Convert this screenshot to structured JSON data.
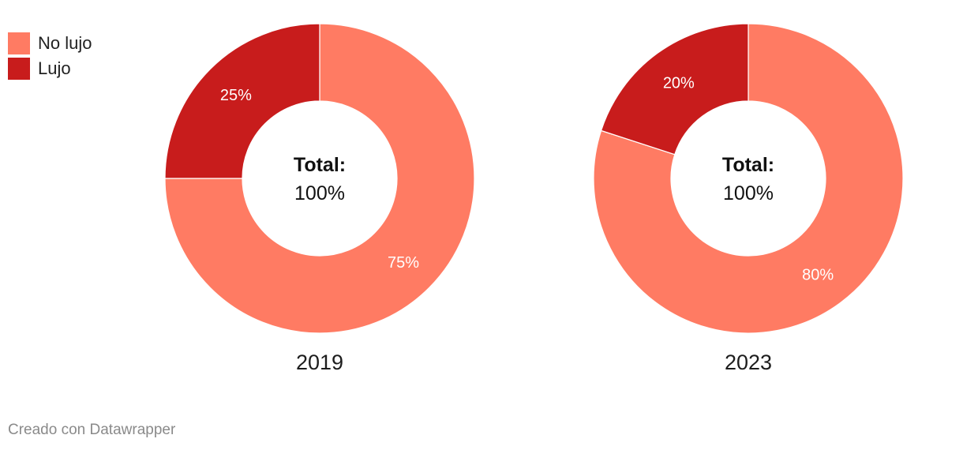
{
  "legend": [
    {
      "label": "No lujo",
      "color": "#ff7b63"
    },
    {
      "label": "Lujo",
      "color": "#c81c1c"
    }
  ],
  "chart_data": [
    {
      "type": "pie",
      "subtype": "donut",
      "label": "2019",
      "center_label_bold": "Total:",
      "center_label_value": "100%",
      "slices": [
        {
          "name": "No lujo",
          "value": 75,
          "label": "75%",
          "color": "#ff7b63"
        },
        {
          "name": "Lujo",
          "value": 25,
          "label": "25%",
          "color": "#c81c1c"
        }
      ]
    },
    {
      "type": "pie",
      "subtype": "donut",
      "label": "2023",
      "center_label_bold": "Total:",
      "center_label_value": "100%",
      "slices": [
        {
          "name": "No lujo",
          "value": 80,
          "label": "80%",
          "color": "#ff7b63"
        },
        {
          "name": "Lujo",
          "value": 20,
          "label": "20%",
          "color": "#c81c1c"
        }
      ]
    }
  ],
  "footer": {
    "credit": "Creado con Datawrapper"
  }
}
